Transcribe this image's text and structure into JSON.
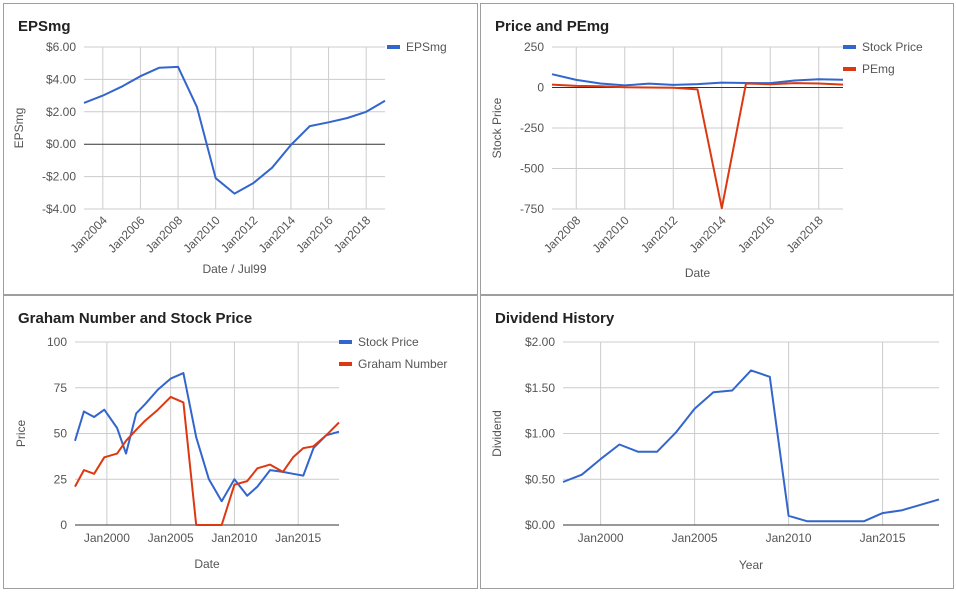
{
  "colors": {
    "blue": "#3366cc",
    "red": "#dc3912",
    "grid": "#cccccc",
    "zero": "#333333"
  },
  "chart_data": [
    {
      "type": "line",
      "title": "EPSmg",
      "xlabel": "Date / Jul99",
      "ylabel": "EPSmg",
      "ylim": [
        -4,
        6
      ],
      "y_ticks": [
        6,
        4,
        2,
        0,
        -2,
        -4
      ],
      "y_tick_labels": [
        "$6.00",
        "$4.00",
        "$2.00",
        "$0.00",
        "-$2.00",
        "-$4.00"
      ],
      "x_range": [
        2003,
        2019
      ],
      "x_ticks": [
        2004,
        2006,
        2008,
        2010,
        2012,
        2014,
        2016,
        2018
      ],
      "x_tick_labels": [
        "Jan2004",
        "Jan2006",
        "Jan2008",
        "Jan2010",
        "Jan2012",
        "Jan2014",
        "Jan2016",
        "Jan2018"
      ],
      "grid": true,
      "legend": "right",
      "series": [
        {
          "name": "EPSmg",
          "color": "#3366cc",
          "x": [
            2003,
            2004,
            2005,
            2006,
            2007,
            2008,
            2009,
            2010,
            2011,
            2012,
            2013,
            2014,
            2015,
            2016,
            2017,
            2018,
            2019
          ],
          "values": [
            2.55,
            3.0,
            3.55,
            4.2,
            4.72,
            4.77,
            2.3,
            -2.1,
            -3.05,
            -2.4,
            -1.45,
            -0.05,
            1.12,
            1.35,
            1.62,
            2.0,
            2.68
          ]
        }
      ]
    },
    {
      "type": "line",
      "title": "Price and PEmg",
      "xlabel": "Date",
      "ylabel": "Stock Price",
      "ylim": [
        -750,
        250
      ],
      "y_ticks": [
        250,
        0,
        -250,
        -500,
        -750
      ],
      "y_tick_labels": [
        "250",
        "0",
        "-250",
        "-500",
        "-750"
      ],
      "x_range": [
        2007,
        2019
      ],
      "x_ticks": [
        2008,
        2010,
        2012,
        2014,
        2016,
        2018
      ],
      "x_tick_labels": [
        "Jan2008",
        "Jan2010",
        "Jan2012",
        "Jan2014",
        "Jan2016",
        "Jan2018"
      ],
      "grid": true,
      "legend": "right",
      "series": [
        {
          "name": "Stock Price",
          "color": "#3366cc",
          "x": [
            2007,
            2008,
            2009,
            2010,
            2011,
            2012,
            2013,
            2014,
            2015,
            2016,
            2017,
            2018,
            2019
          ],
          "values": [
            82,
            47,
            25,
            13,
            24,
            16,
            21,
            30,
            28,
            27,
            43,
            51,
            48
          ]
        },
        {
          "name": "PEmg",
          "color": "#dc3912",
          "x": [
            2007,
            2008,
            2009,
            2010,
            2011,
            2012,
            2013,
            2014,
            2015,
            2016,
            2017,
            2018,
            2019
          ],
          "values": [
            18,
            10,
            8,
            2,
            0,
            -1,
            -12,
            -745,
            25,
            20,
            27,
            25,
            18
          ]
        }
      ]
    },
    {
      "type": "line",
      "title": "Graham Number and Stock Price",
      "xlabel": "Date",
      "ylabel": "Price",
      "ylim": [
        0,
        100
      ],
      "y_ticks": [
        100,
        75,
        50,
        25,
        0
      ],
      "y_tick_labels": [
        "100",
        "75",
        "50",
        "25",
        "0"
      ],
      "x_range": [
        1997.5,
        2018.2
      ],
      "x_ticks": [
        2000,
        2005,
        2010,
        2015
      ],
      "x_tick_labels": [
        "Jan2000",
        "Jan2005",
        "Jan2010",
        "Jan2015"
      ],
      "grid": true,
      "legend": "right",
      "series": [
        {
          "name": "Stock Price",
          "color": "#3366cc",
          "x": [
            1997.5,
            1998.2,
            1999,
            1999.8,
            2000.8,
            2001.5,
            2002.3,
            2003,
            2004,
            2005,
            2006,
            2007,
            2008,
            2009,
            2010,
            2011,
            2011.8,
            2012.8,
            2013.8,
            2014.6,
            2015.4,
            2016.2,
            2017.2,
            2018.2
          ],
          "values": [
            46,
            62,
            59,
            63,
            53,
            39,
            61,
            66,
            74,
            80,
            83,
            48,
            25,
            13,
            25,
            16,
            21,
            30,
            29,
            28,
            27,
            42,
            49,
            51
          ]
        },
        {
          "name": "Graham Number",
          "color": "#dc3912",
          "x": [
            1997.5,
            1998.2,
            1999,
            1999.8,
            2000.8,
            2001.5,
            2002.3,
            2003,
            2004,
            2005,
            2006,
            2007,
            2008,
            2009,
            2010,
            2011,
            2011.8,
            2012.8,
            2013.8,
            2014.6,
            2015.4,
            2016.2,
            2017.2,
            2018.2
          ],
          "values": [
            21,
            30,
            28,
            37,
            39,
            46,
            52,
            57,
            63,
            70,
            67,
            0,
            0,
            0,
            22,
            24,
            31,
            33,
            29,
            37,
            42,
            43,
            49,
            56
          ]
        }
      ]
    },
    {
      "type": "line",
      "title": "Dividend History",
      "xlabel": "Year",
      "ylabel": "Dividend",
      "ylim": [
        0,
        2
      ],
      "y_ticks": [
        2,
        1.5,
        1,
        0.5,
        0
      ],
      "y_tick_labels": [
        "$2.00",
        "$1.50",
        "$1.00",
        "$0.50",
        "$0.00"
      ],
      "x_range": [
        1998,
        2018
      ],
      "x_ticks": [
        2000,
        2005,
        2010,
        2015
      ],
      "x_tick_labels": [
        "Jan2000",
        "Jan2005",
        "Jan2010",
        "Jan2015"
      ],
      "grid": true,
      "legend": "none",
      "series": [
        {
          "color": "#3366cc",
          "x": [
            1998,
            1999,
            2000,
            2001,
            2002,
            2003,
            2004,
            2005,
            2006,
            2007,
            2008,
            2009,
            2010,
            2011,
            2012,
            2013,
            2014,
            2015,
            2016,
            2017,
            2018
          ],
          "values": [
            0.47,
            0.55,
            0.72,
            0.88,
            0.8,
            0.8,
            1.01,
            1.27,
            1.45,
            1.47,
            1.69,
            1.62,
            0.1,
            0.04,
            0.04,
            0.04,
            0.04,
            0.13,
            0.16,
            0.22,
            0.28
          ]
        }
      ]
    }
  ]
}
